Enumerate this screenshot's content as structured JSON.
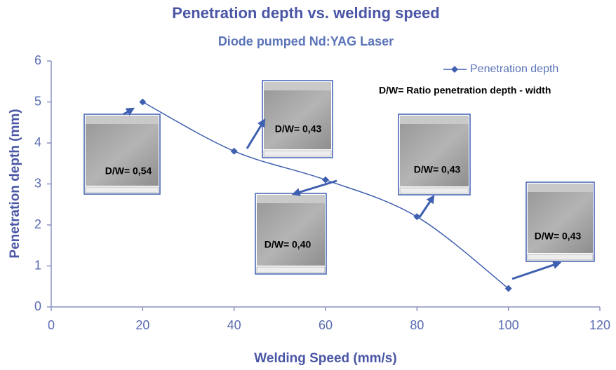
{
  "chart_data": {
    "type": "line",
    "title": "Penetration depth vs. welding speed",
    "subtitle": "Diode pumped Nd:YAG Laser",
    "x_label": "Welding Speed (mm/s)",
    "y_label": "Penetration depth (mm)",
    "x": [
      20,
      40,
      60,
      80,
      100
    ],
    "series": [
      {
        "name": "Penetration depth",
        "color": "#3f5fb0",
        "values": [
          5,
          3.8,
          3.1,
          2.2,
          0.45
        ]
      }
    ],
    "xlim": [
      0,
      120
    ],
    "xticks": [
      0,
      20,
      40,
      60,
      80,
      100,
      120
    ],
    "ylim": [
      0,
      6
    ],
    "yticks": [
      0,
      1,
      2,
      3,
      4,
      5,
      6
    ],
    "note": "D/W= Ratio penetration depth - width",
    "annotations": [
      "D/W= 0,54",
      "D/W= 0,43",
      "D/W= 0,40",
      "D/W= 0,43",
      "D/W= 0,43"
    ]
  }
}
